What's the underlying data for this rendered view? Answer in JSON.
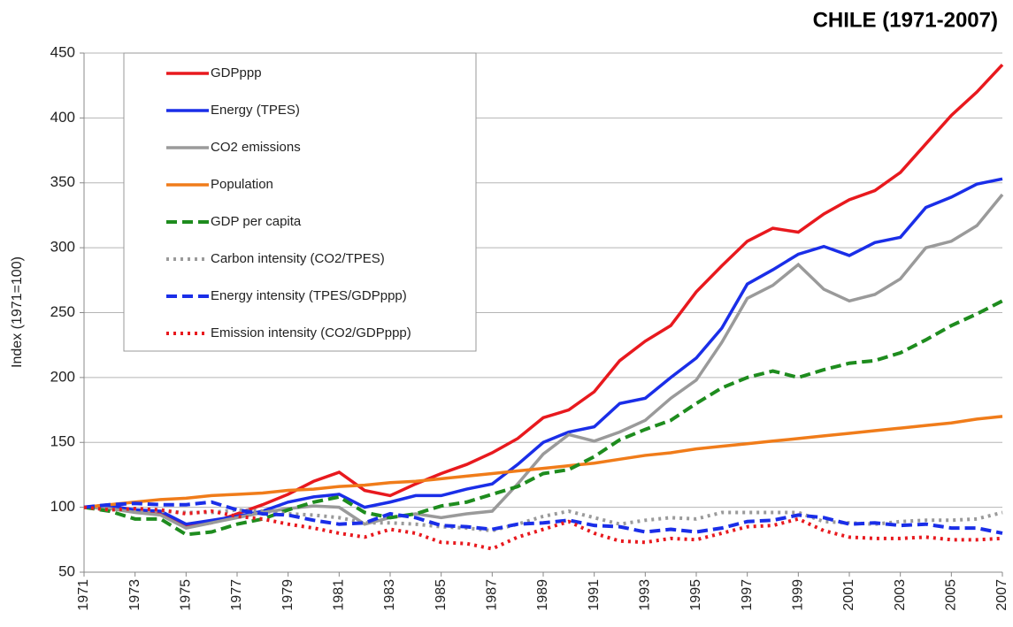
{
  "chart_data": {
    "type": "line",
    "title": "CHILE (1971-2007)",
    "y_label": "Index (1971=100)",
    "x": [
      1971,
      1972,
      1973,
      1974,
      1975,
      1976,
      1977,
      1978,
      1979,
      1980,
      1981,
      1982,
      1983,
      1984,
      1985,
      1986,
      1987,
      1988,
      1989,
      1990,
      1991,
      1992,
      1993,
      1994,
      1995,
      1996,
      1997,
      1998,
      1999,
      2000,
      2001,
      2002,
      2003,
      2004,
      2005,
      2006,
      2007
    ],
    "xlim": [
      1971,
      2007
    ],
    "xticks": [
      1971,
      1973,
      1975,
      1977,
      1979,
      1981,
      1983,
      1985,
      1987,
      1989,
      1991,
      1993,
      1995,
      1997,
      1999,
      2001,
      2003,
      2005,
      2007
    ],
    "ylim": [
      50,
      450
    ],
    "yticks": [
      50,
      100,
      150,
      200,
      250,
      300,
      350,
      400,
      450
    ],
    "grid": true,
    "legend": "upper left",
    "series": [
      {
        "name": "GDPppp",
        "color": "#e8191e",
        "style": "solid",
        "values": [
          100,
          102,
          97,
          96,
          85,
          88,
          95,
          102,
          110,
          120,
          127,
          113,
          109,
          118,
          126,
          133,
          142,
          153,
          169,
          175,
          189,
          213,
          228,
          240,
          266,
          286,
          305,
          315,
          312,
          326,
          337,
          344,
          358,
          380,
          402,
          420,
          441
        ]
      },
      {
        "name": "Energy (TPES)",
        "color": "#1a2ee8",
        "style": "solid",
        "values": [
          100,
          101,
          98,
          97,
          87,
          90,
          93,
          97,
          104,
          108,
          110,
          100,
          104,
          109,
          109,
          114,
          118,
          133,
          150,
          158,
          162,
          180,
          184,
          200,
          215,
          238,
          272,
          283,
          295,
          301,
          294,
          304,
          308,
          331,
          339,
          349,
          353
        ]
      },
      {
        "name": "CO2 emissions",
        "color": "#9a9a9a",
        "style": "solid",
        "values": [
          100,
          99,
          96,
          94,
          84,
          88,
          92,
          96,
          99,
          101,
          100,
          87,
          92,
          95,
          92,
          95,
          97,
          118,
          141,
          156,
          151,
          158,
          167,
          184,
          198,
          227,
          261,
          271,
          287,
          268,
          259,
          264,
          276,
          300,
          305,
          317,
          341
        ]
      },
      {
        "name": "Population",
        "color": "#f07c1a",
        "style": "solid",
        "values": [
          100,
          102,
          104,
          106,
          107,
          109,
          110,
          111,
          113,
          114,
          116,
          117,
          119,
          120,
          122,
          124,
          126,
          128,
          130,
          132,
          134,
          137,
          140,
          142,
          145,
          147,
          149,
          151,
          153,
          155,
          157,
          159,
          161,
          163,
          165,
          168,
          170
        ]
      },
      {
        "name": "GDP per capita",
        "color": "#1e8c1e",
        "style": "dashed",
        "values": [
          100,
          97,
          91,
          91,
          79,
          81,
          87,
          91,
          98,
          104,
          108,
          96,
          92,
          95,
          101,
          104,
          110,
          116,
          126,
          129,
          139,
          152,
          160,
          167,
          180,
          192,
          200,
          205,
          200,
          206,
          211,
          213,
          219,
          229,
          240,
          249,
          259
        ]
      },
      {
        "name": "Carbon intensity (CO2/TPES)",
        "color": "#9a9a9a",
        "style": "dotted",
        "values": [
          100,
          98,
          98,
          97,
          96,
          96,
          98,
          97,
          95,
          94,
          92,
          88,
          88,
          87,
          85,
          84,
          82,
          87,
          93,
          97,
          92,
          87,
          90,
          92,
          91,
          96,
          96,
          96,
          96,
          89,
          88,
          87,
          89,
          90,
          90,
          91,
          96
        ]
      },
      {
        "name": "Energy intensity (TPES/GDPppp)",
        "color": "#1a2ee8",
        "style": "dashed",
        "values": [
          100,
          102,
          103,
          102,
          102,
          104,
          98,
          95,
          94,
          90,
          87,
          88,
          95,
          92,
          86,
          85,
          83,
          87,
          88,
          90,
          86,
          85,
          81,
          83,
          81,
          84,
          89,
          90,
          94,
          92,
          87,
          88,
          86,
          87,
          84,
          84,
          80
        ]
      },
      {
        "name": "Emission intensity (CO2/GDPppp)",
        "color": "#e8191e",
        "style": "dotted",
        "values": [
          100,
          98,
          99,
          98,
          95,
          97,
          93,
          91,
          87,
          84,
          80,
          77,
          83,
          80,
          73,
          72,
          68,
          77,
          83,
          89,
          80,
          74,
          73,
          76,
          75,
          80,
          85,
          86,
          91,
          82,
          77,
          76,
          76,
          77,
          75,
          75,
          76
        ]
      }
    ]
  }
}
